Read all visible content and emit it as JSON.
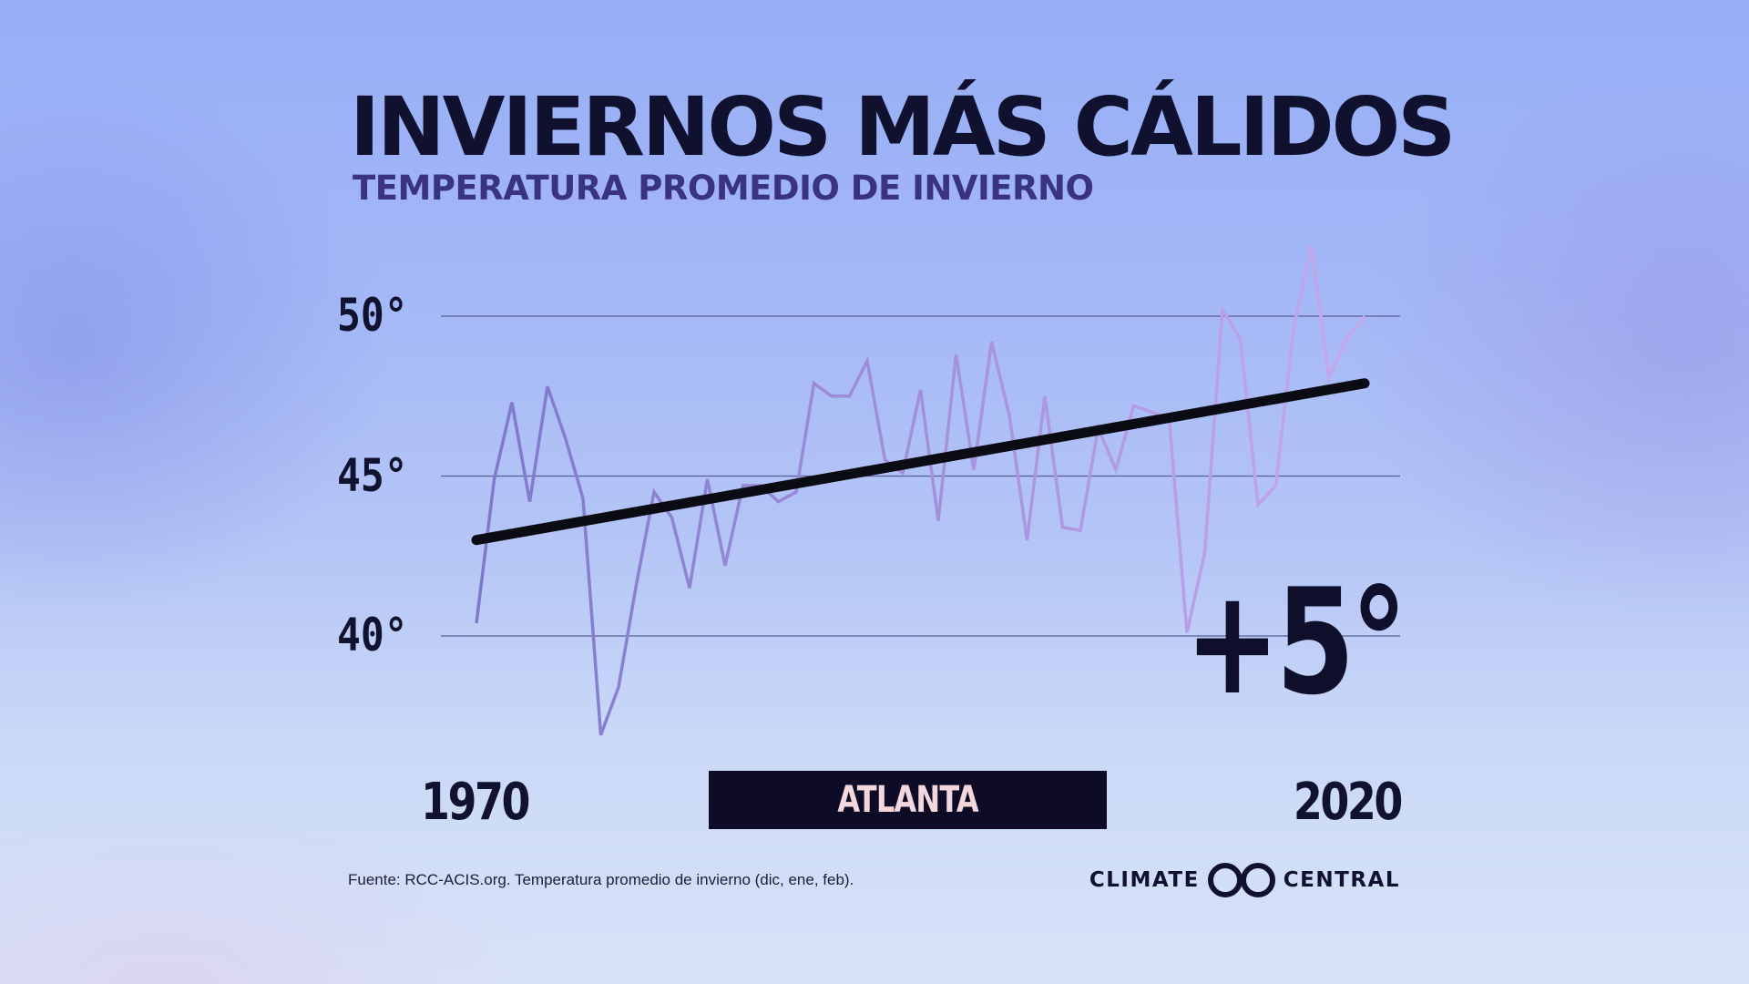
{
  "title": "INVIERNOS MÁS CÁLIDOS",
  "subtitle": "TEMPERATURA PROMEDIO DE INVIERNO",
  "location": "ATLANTA",
  "change_label": "+5°",
  "source": "Fuente: RCC-ACIS.org. Temperatura promedio de invierno (dic, ene, feb).",
  "brand": {
    "left_word": "CLIMATE",
    "right_word": "CENTRAL",
    "logo_icon": "climate-central-logo-icon"
  },
  "colors": {
    "title": "#10112f",
    "subtitle": "#3a3282",
    "series_start": "#7e78cc",
    "series_end": "#c7a8ec",
    "trend": "#0b0b14",
    "gridline": "#5b5f96",
    "label_box": "#0d0b26",
    "label_text": "#f3d7dd"
  },
  "chart_data": {
    "type": "line",
    "title": "INVIERNOS MÁS CÁLIDOS",
    "subtitle": "TEMPERATURA PROMEDIO DE INVIERNO",
    "xlabel": "",
    "ylabel": "",
    "x_range": [
      1970,
      2020
    ],
    "ylim": [
      36.5,
      52.5
    ],
    "y_ticks": [
      40,
      45,
      50
    ],
    "y_tick_labels": [
      "40°",
      "45°",
      "50°"
    ],
    "x_tick_labels": [
      "1970",
      "2020"
    ],
    "grid": true,
    "series": [
      {
        "x": [
          1970,
          1971,
          1972,
          1973,
          1974,
          1975,
          1976,
          1977,
          1978,
          1979,
          1980,
          1981,
          1982,
          1983,
          1984,
          1985,
          1986,
          1987,
          1988,
          1989,
          1990,
          1991,
          1992,
          1993,
          1994,
          1995,
          1996,
          1997,
          1998,
          1999,
          2000,
          2001,
          2002,
          2003,
          2004,
          2005,
          2006,
          2007,
          2008,
          2009,
          2010,
          2011,
          2012,
          2013,
          2014,
          2015,
          2016,
          2017,
          2018,
          2019,
          2020
        ],
        "y": [
          40.4,
          44.9,
          47.3,
          44.2,
          47.8,
          46.2,
          44.3,
          36.9,
          38.4,
          41.6,
          44.5,
          43.7,
          41.5,
          44.9,
          42.2,
          44.7,
          44.7,
          44.2,
          44.5,
          47.9,
          47.5,
          47.5,
          48.6,
          45.5,
          45.1,
          47.7,
          43.6,
          48.8,
          45.2,
          49.2,
          46.9,
          43.0,
          47.5,
          43.4,
          43.3,
          46.5,
          45.2,
          47.2,
          47.0,
          46.8,
          40.1,
          42.6,
          50.2,
          49.3,
          44.1,
          44.7,
          49.6,
          52.2,
          48.1,
          49.3,
          50.0
        ]
      }
    ],
    "trend": {
      "x": [
        1970,
        2020
      ],
      "y": [
        43.0,
        47.9
      ]
    },
    "annotation": "+5°"
  }
}
